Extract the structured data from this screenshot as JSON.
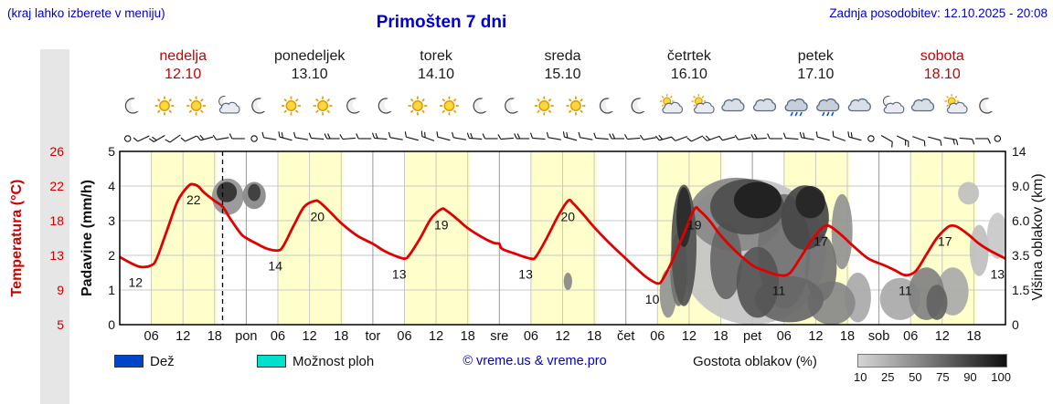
{
  "header": {
    "menu_hint": "(kraj lahko izberete v meniju)",
    "title": "Primošten 7 dni",
    "last_update": "Zadnja posodobitev: 12.10.2025 - 20:08"
  },
  "colors": {
    "title_blue": "#0000cc",
    "weekend_red": "#cc0000",
    "temp_line": "#e00000",
    "day_band": "#ffffcc",
    "rain_blue": "#0044cc",
    "showers_cyan": "#00e0cf"
  },
  "days": [
    {
      "name": "nedelja",
      "date": "12.10",
      "highlight": true,
      "icons": [
        "moon",
        "sun",
        "sun",
        "moon-cloud"
      ]
    },
    {
      "name": "ponedeljek",
      "date": "13.10",
      "highlight": false,
      "icons": [
        "moon",
        "sun",
        "sun",
        "moon"
      ]
    },
    {
      "name": "torek",
      "date": "14.10",
      "highlight": false,
      "icons": [
        "moon",
        "sun",
        "sun",
        "moon"
      ]
    },
    {
      "name": "sreda",
      "date": "15.10",
      "highlight": false,
      "icons": [
        "moon",
        "sun",
        "sun",
        "moon"
      ]
    },
    {
      "name": "četrtek",
      "date": "16.10",
      "highlight": false,
      "icons": [
        "moon",
        "sun-cloud",
        "sun-cloud",
        "cloud"
      ]
    },
    {
      "name": "petek",
      "date": "17.10",
      "highlight": false,
      "icons": [
        "cloud",
        "cloud-rain",
        "cloud-rain",
        "cloud"
      ]
    },
    {
      "name": "sobota",
      "date": "18.10",
      "highlight": true,
      "icons": [
        "moon-cloud",
        "cloud",
        "sun-cloud",
        "moon"
      ]
    }
  ],
  "left_axis": {
    "temp_title": "Temperatura (°C)",
    "temp_ticks": [
      "26",
      "22",
      "18",
      "13",
      "9",
      "5"
    ],
    "precip_title": "Padavine (mm/h)",
    "precip_ticks": [
      "5",
      "4",
      "3",
      "2",
      "1",
      "0"
    ]
  },
  "right_axis": {
    "title": "Višina oblakov (km)",
    "ticks": [
      "14",
      "9.0",
      "6.0",
      "3.5",
      "1.5",
      "0"
    ]
  },
  "time_axis": {
    "hour_ticks": [
      "06",
      "12",
      "18"
    ],
    "day_abbrs": [
      "pon",
      "tor",
      "sre",
      "čet",
      "pet",
      "sob"
    ]
  },
  "legend": {
    "rain_label": "Dež",
    "showers_label": "Možnost ploh",
    "copyright": "© vreme.us & vreme.pro",
    "cloud_density_label": "Gostota oblakov (%)",
    "density_ticks": [
      "10",
      "25",
      "50",
      "75",
      "90",
      "100"
    ]
  },
  "chart_data": {
    "type": "line",
    "title": "Primošten 7 dni",
    "x_unit": "hours from nedelja 00:00, 7 days total (0-168)",
    "grid": true,
    "legend_position": "bottom",
    "temp_axis_range": [
      5,
      26
    ],
    "precip_axis_range": [
      0,
      5
    ],
    "cloud_height_ticks_km": [
      0,
      1.5,
      3.5,
      6,
      9,
      14
    ],
    "daylight_hours": [
      6,
      18.5
    ],
    "now_hour": 19.5,
    "icon_hours": [
      2.5,
      8.5,
      14.5,
      20.5
    ],
    "series": [
      {
        "name": "Temperatura (°C)",
        "color": "#e00000",
        "points": [
          [
            0,
            13.2
          ],
          [
            2,
            12.5
          ],
          [
            4,
            12.0
          ],
          [
            6,
            12.2
          ],
          [
            7,
            13
          ],
          [
            9,
            16.5
          ],
          [
            11,
            20
          ],
          [
            13,
            21.8
          ],
          [
            14,
            22
          ],
          [
            15,
            21.7
          ],
          [
            16,
            21
          ],
          [
            18,
            20
          ],
          [
            19.5,
            19.3
          ],
          [
            21,
            17.8
          ],
          [
            23,
            16
          ],
          [
            24,
            15.5
          ],
          [
            26,
            14.8
          ],
          [
            28,
            14.2
          ],
          [
            30,
            14
          ],
          [
            31,
            14.5
          ],
          [
            33,
            17
          ],
          [
            35,
            19.3
          ],
          [
            37,
            20
          ],
          [
            38,
            19.8
          ],
          [
            40,
            18.6
          ],
          [
            42,
            17.3
          ],
          [
            45,
            15.8
          ],
          [
            48,
            14.8
          ],
          [
            50,
            14
          ],
          [
            52,
            13.4
          ],
          [
            54,
            13
          ],
          [
            55,
            13.5
          ],
          [
            57,
            15.5
          ],
          [
            59,
            17.8
          ],
          [
            61,
            19
          ],
          [
            62,
            18.8
          ],
          [
            64,
            17.8
          ],
          [
            66,
            16.7
          ],
          [
            69,
            15.5
          ],
          [
            71,
            14.9
          ],
          [
            72,
            14.8
          ],
          [
            72.5,
            14.2
          ],
          [
            75,
            13.6
          ],
          [
            78,
            13
          ],
          [
            79,
            13.3
          ],
          [
            81,
            15.5
          ],
          [
            83,
            18
          ],
          [
            85,
            20
          ],
          [
            86,
            19.7
          ],
          [
            88,
            18.3
          ],
          [
            90,
            16.8
          ],
          [
            93,
            14.8
          ],
          [
            96,
            13
          ],
          [
            98,
            11.8
          ],
          [
            100,
            10.7
          ],
          [
            102,
            10
          ],
          [
            103,
            10.5
          ],
          [
            105,
            13
          ],
          [
            107,
            16
          ],
          [
            109,
            19
          ],
          [
            110,
            18.8
          ],
          [
            112,
            17.5
          ],
          [
            114,
            15.8
          ],
          [
            117,
            13.8
          ],
          [
            120,
            12.2
          ],
          [
            122,
            11.6
          ],
          [
            125,
            11
          ],
          [
            127,
            11.2
          ],
          [
            129,
            13
          ],
          [
            131,
            15
          ],
          [
            133,
            16.6
          ],
          [
            134,
            17
          ],
          [
            135,
            16.8
          ],
          [
            137,
            15.8
          ],
          [
            139,
            14.6
          ],
          [
            142,
            13
          ],
          [
            145,
            12.2
          ],
          [
            147,
            11.6
          ],
          [
            149,
            11
          ],
          [
            151,
            11.5
          ],
          [
            153,
            13.5
          ],
          [
            155,
            15.5
          ],
          [
            157,
            16.8
          ],
          [
            158,
            17
          ],
          [
            159,
            16.8
          ],
          [
            161,
            15.9
          ],
          [
            163,
            14.8
          ],
          [
            165,
            14
          ],
          [
            168,
            13
          ]
        ]
      }
    ],
    "temp_labels": [
      {
        "hour": 3,
        "temp": 12,
        "text": "12"
      },
      {
        "hour": 14,
        "temp": 22,
        "text": "22"
      },
      {
        "hour": 29.5,
        "temp": 14,
        "text": "14"
      },
      {
        "hour": 37.5,
        "temp": 20,
        "text": "20"
      },
      {
        "hour": 53,
        "temp": 13,
        "text": "13"
      },
      {
        "hour": 61,
        "temp": 19,
        "text": "19"
      },
      {
        "hour": 77,
        "temp": 13,
        "text": "13"
      },
      {
        "hour": 85,
        "temp": 20,
        "text": "20"
      },
      {
        "hour": 101,
        "temp": 10,
        "text": "10"
      },
      {
        "hour": 109,
        "temp": 19,
        "text": "19"
      },
      {
        "hour": 125,
        "temp": 11,
        "text": "11"
      },
      {
        "hour": 133,
        "temp": 17,
        "text": "17"
      },
      {
        "hour": 149,
        "temp": 11,
        "text": "11"
      },
      {
        "hour": 156.5,
        "temp": 17,
        "text": "17"
      },
      {
        "hour": 166.5,
        "temp": 13,
        "text": "13"
      }
    ],
    "clouds_format": "[hour, altitude_km, half_width_hours, half_height_km, density_pct]",
    "clouds": [
      [
        20.5,
        8.3,
        3,
        1.8,
        40
      ],
      [
        20.3,
        8.6,
        1.9,
        1.0,
        85
      ],
      [
        25.5,
        8.3,
        2.2,
        1.3,
        45
      ],
      [
        25.5,
        8.5,
        1.2,
        0.8,
        80
      ],
      [
        85,
        2,
        0.8,
        0.5,
        45
      ],
      [
        120,
        5,
        14,
        5,
        18
      ],
      [
        104,
        1.5,
        1.6,
        1.2,
        40
      ],
      [
        106,
        3,
        1.6,
        2.2,
        55
      ],
      [
        107,
        5,
        2.4,
        4.2,
        70
      ],
      [
        107,
        6.5,
        1.4,
        2.4,
        88
      ],
      [
        117,
        7,
        9,
        3.2,
        45
      ],
      [
        119,
        7.5,
        7,
        2.5,
        72
      ],
      [
        121,
        7.9,
        4.5,
        1.7,
        93
      ],
      [
        115,
        3.5,
        3,
        2.4,
        60
      ],
      [
        121,
        2.2,
        4,
        1.9,
        68
      ],
      [
        126,
        4.5,
        5,
        3.8,
        55
      ],
      [
        130,
        6.5,
        4.5,
        2.6,
        75
      ],
      [
        131,
        7.6,
        2.8,
        1.4,
        90
      ],
      [
        127,
        1.2,
        6.5,
        1.1,
        60
      ],
      [
        133,
        3,
        3,
        2,
        55
      ],
      [
        135,
        1,
        4.5,
        1,
        45
      ],
      [
        137,
        5.5,
        2,
        2.8,
        40
      ],
      [
        140,
        1.3,
        2.5,
        1.2,
        30
      ],
      [
        148,
        1.2,
        3.8,
        1,
        30
      ],
      [
        153,
        1.5,
        3.4,
        1.3,
        48
      ],
      [
        155,
        1,
        2,
        0.8,
        62
      ],
      [
        158,
        1.6,
        3,
        1.2,
        30
      ],
      [
        161,
        8.5,
        2,
        1.1,
        20
      ],
      [
        163,
        4,
        1.8,
        1.7,
        20
      ],
      [
        166.5,
        5,
        2,
        1.7,
        16
      ]
    ],
    "wind_barbs_format": "every 3 hours; null = calm circle, else [angle_deg, tick_count]",
    "wind_barbs": [
      null,
      [
        245,
        1
      ],
      [
        240,
        2
      ],
      [
        235,
        1
      ],
      [
        245,
        1
      ],
      [
        255,
        2
      ],
      [
        260,
        1
      ],
      [
        270,
        1
      ],
      null,
      [
        280,
        1
      ],
      [
        285,
        2
      ],
      [
        280,
        1
      ],
      [
        275,
        1
      ],
      [
        270,
        2
      ],
      [
        265,
        1
      ],
      [
        270,
        1
      ],
      [
        275,
        2
      ],
      [
        280,
        1
      ],
      [
        285,
        1
      ],
      [
        290,
        2
      ],
      [
        285,
        1
      ],
      [
        280,
        1
      ],
      [
        275,
        2
      ],
      [
        270,
        1
      ],
      [
        265,
        1
      ],
      [
        270,
        2
      ],
      [
        275,
        1
      ],
      [
        280,
        1
      ],
      [
        285,
        2
      ],
      [
        280,
        1
      ],
      [
        275,
        1
      ],
      [
        270,
        2
      ],
      [
        265,
        1
      ],
      [
        260,
        1
      ],
      [
        255,
        2
      ],
      [
        250,
        1
      ],
      [
        245,
        1
      ],
      [
        250,
        2
      ],
      [
        255,
        1
      ],
      [
        260,
        1
      ],
      [
        265,
        2
      ],
      [
        270,
        1
      ],
      [
        275,
        1
      ],
      [
        280,
        2
      ],
      [
        285,
        1
      ],
      [
        290,
        1
      ],
      [
        285,
        2
      ],
      null,
      [
        120,
        1
      ],
      [
        115,
        2
      ],
      [
        110,
        1
      ],
      [
        105,
        1
      ],
      [
        100,
        2
      ],
      [
        95,
        1
      ],
      [
        90,
        1
      ],
      null
    ]
  }
}
